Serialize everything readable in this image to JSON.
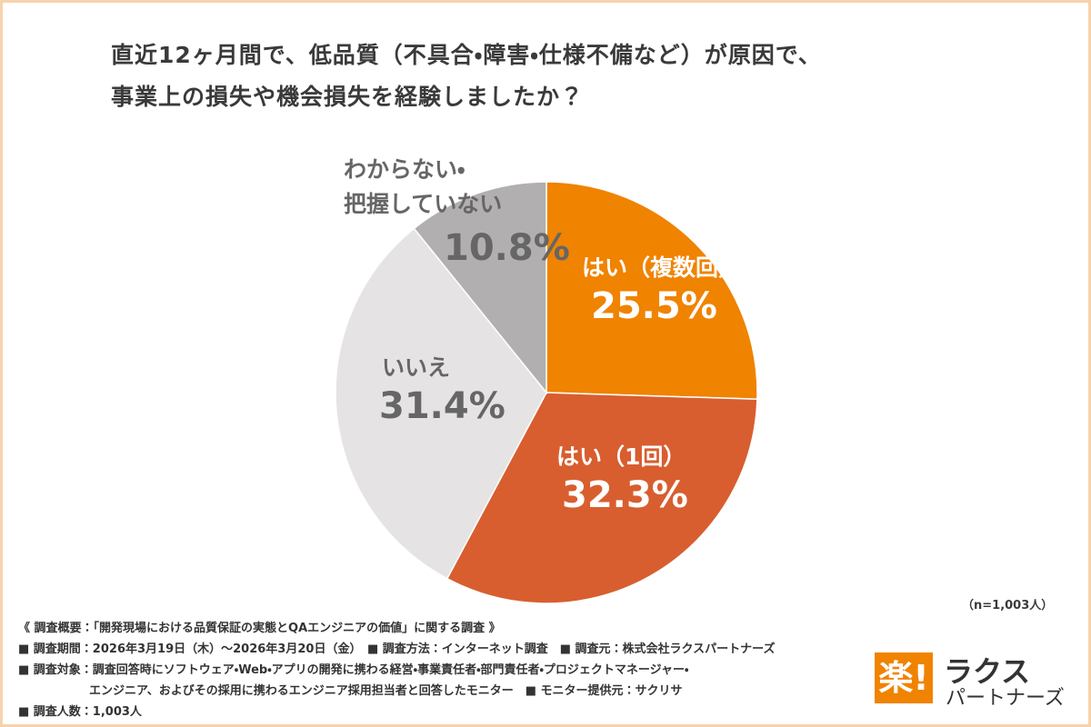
{
  "chart_data": {
    "type": "pie",
    "title": "直近12ヶ月間で、低品質（不具合・障害・仕様不備など）が原因で、\n事業上の損失や機会損失を経験しましたか？",
    "categories": [
      "はい（複数回）",
      "はい（1回）",
      "いいえ",
      "わからない・\n把握していない"
    ],
    "values": [
      25.5,
      32.3,
      31.4,
      10.8
    ],
    "value_labels": [
      "25.5%",
      "32.3%",
      "31.4%",
      "10.8%"
    ],
    "colors": [
      "#f08300",
      "#d85e2f",
      "#e6e3e5",
      "#b2afb0"
    ],
    "note": "（n=1,003人）"
  },
  "footer": {
    "lines": [
      "《 調査概要：「開発現場における品質保証の実態とQAエンジニアの価値」に関する調査 》",
      "■ 調査期間：2026年3月19日（木）～2026年3月20日（金）　■ 調査方法：インターネット調査　■ 調査元：株式会社ラクスパートナーズ",
      "■ 調査対象：調査回答時にソフトウェア・Web・アプリの開発に携わる経営・事業責任者・部門責任者・プロジェクトマネージャー・\n　　　　　　エンジニア、およびその採用に携わるエンジニア採用担当者と回答したモニター　■ モニター提供元：サクリサ",
      "■ 調査人数：1,003人"
    ]
  },
  "logo": {
    "icon": "楽!",
    "line1": "ラクス",
    "line2": "パートナーズ"
  }
}
